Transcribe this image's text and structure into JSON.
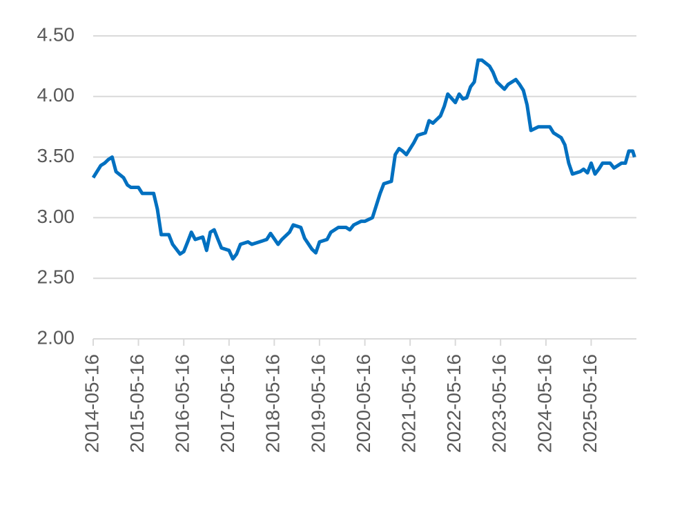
{
  "chart_data": {
    "type": "line",
    "x": [
      "2014-05-16",
      "2014-07-16",
      "2014-08-16",
      "2014-09-16",
      "2014-10-16",
      "2014-11-16",
      "2015-01-16",
      "2015-02-16",
      "2015-03-16",
      "2015-05-16",
      "2015-06-16",
      "2015-09-16",
      "2015-10-16",
      "2015-11-16",
      "2016-01-16",
      "2016-02-16",
      "2016-04-16",
      "2016-05-16",
      "2016-06-16",
      "2016-07-16",
      "2016-08-16",
      "2016-10-16",
      "2016-11-16",
      "2016-12-16",
      "2017-01-16",
      "2017-02-16",
      "2017-03-16",
      "2017-05-16",
      "2017-06-16",
      "2017-07-16",
      "2017-08-16",
      "2017-10-16",
      "2017-11-16",
      "2018-01-16",
      "2018-03-16",
      "2018-04-16",
      "2018-06-16",
      "2018-07-16",
      "2018-09-16",
      "2018-10-16",
      "2018-12-16",
      "2019-01-16",
      "2019-03-16",
      "2019-04-16",
      "2019-05-16",
      "2019-07-16",
      "2019-08-16",
      "2019-10-16",
      "2019-12-16",
      "2020-01-16",
      "2020-02-16",
      "2020-04-16",
      "2020-05-16",
      "2020-07-16",
      "2020-08-16",
      "2020-09-16",
      "2020-10-16",
      "2020-12-16",
      "2021-01-16",
      "2021-02-16",
      "2021-03-16",
      "2021-04-16",
      "2021-06-16",
      "2021-07-16",
      "2021-09-16",
      "2021-10-16",
      "2021-11-16",
      "2022-01-16",
      "2022-02-16",
      "2022-03-16",
      "2022-05-16",
      "2022-06-16",
      "2022-07-16",
      "2022-08-16",
      "2022-09-16",
      "2022-10-16",
      "2022-11-16",
      "2022-12-16",
      "2023-02-16",
      "2023-03-16",
      "2023-04-16",
      "2023-06-16",
      "2023-07-16",
      "2023-09-16",
      "2023-10-16",
      "2023-11-16",
      "2023-12-16",
      "2024-01-16",
      "2024-03-16",
      "2024-05-16",
      "2024-06-16",
      "2024-07-16",
      "2024-09-16",
      "2024-10-16",
      "2024-11-16",
      "2024-12-16",
      "2025-02-16",
      "2025-03-16",
      "2025-04-16",
      "2025-05-16",
      "2025-06-16",
      "2025-07-16",
      "2025-08-16",
      "2025-10-16",
      "2025-11-16",
      "2026-01-16",
      "2026-02-16",
      "2026-03-16",
      "2026-04-16",
      "2026-05-01"
    ],
    "series": [
      {
        "color": "#0070c0",
        "values": [
          3.33,
          3.43,
          3.45,
          3.48,
          3.5,
          3.38,
          3.33,
          3.27,
          3.25,
          3.25,
          3.2,
          3.2,
          3.07,
          2.86,
          2.86,
          2.78,
          2.7,
          2.72,
          2.8,
          2.88,
          2.82,
          2.84,
          2.73,
          2.88,
          2.9,
          2.82,
          2.75,
          2.73,
          2.66,
          2.7,
          2.78,
          2.8,
          2.78,
          2.8,
          2.82,
          2.87,
          2.78,
          2.82,
          2.88,
          2.94,
          2.92,
          2.83,
          2.74,
          2.71,
          2.8,
          2.82,
          2.88,
          2.92,
          2.92,
          2.9,
          2.94,
          2.97,
          2.97,
          3.0,
          3.1,
          3.2,
          3.28,
          3.3,
          3.52,
          3.57,
          3.55,
          3.52,
          3.62,
          3.68,
          3.7,
          3.8,
          3.78,
          3.84,
          3.92,
          4.02,
          3.95,
          4.02,
          3.98,
          3.99,
          4.08,
          4.12,
          4.3,
          4.3,
          4.25,
          4.2,
          4.12,
          4.06,
          4.1,
          4.14,
          4.1,
          4.05,
          3.93,
          3.72,
          3.75,
          3.75,
          3.75,
          3.7,
          3.66,
          3.6,
          3.45,
          3.36,
          3.38,
          3.4,
          3.37,
          3.45,
          3.36,
          3.4,
          3.45,
          3.45,
          3.41,
          3.45,
          3.45,
          3.55,
          3.55,
          3.5
        ]
      }
    ],
    "xlim": [
      "2014-05-16",
      "2026-05-16"
    ],
    "xticks": [
      "2014-05-16",
      "2015-05-16",
      "2016-05-16",
      "2017-05-16",
      "2018-05-16",
      "2019-05-16",
      "2020-05-16",
      "2021-05-16",
      "2022-05-16",
      "2023-05-16",
      "2024-05-16",
      "2025-05-16"
    ],
    "ylim": [
      2,
      4.5
    ],
    "yticks": [
      {
        "value": 2,
        "label": "2.00"
      },
      {
        "value": 2.5,
        "label": "2.50"
      },
      {
        "value": 3,
        "label": "3.00"
      },
      {
        "value": 3.5,
        "label": "3.50"
      },
      {
        "value": 4,
        "label": "4.00"
      },
      {
        "value": 4.5,
        "label": "4.50"
      }
    ],
    "grid": true
  }
}
